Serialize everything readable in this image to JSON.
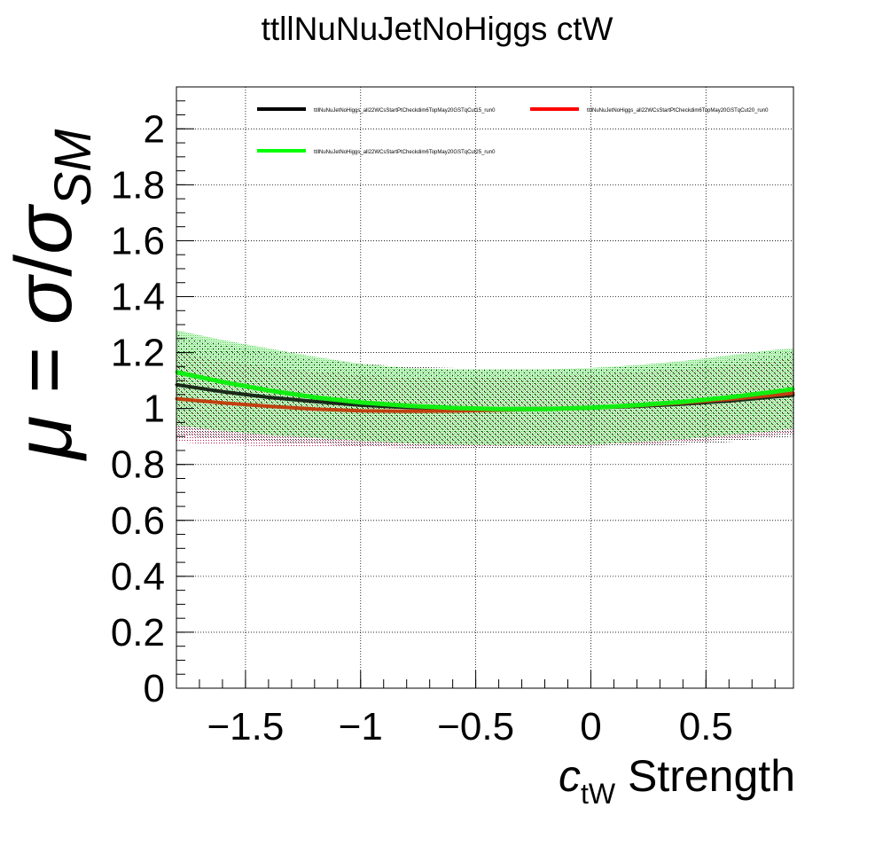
{
  "chart_data": {
    "type": "line",
    "title": "ttllNuNuJetNoHiggs ctW",
    "xlabel": {
      "main": "c",
      "sub": "tW",
      "suffix": " Strength"
    },
    "ylabel": {
      "mu": "μ",
      "eq": " = ",
      "sigma": "σ",
      "slash": "/",
      "sub": "SM"
    },
    "xlim": [
      -1.8,
      0.88
    ],
    "ylim": [
      0,
      2.15
    ],
    "x_ticks": [
      -1.5,
      -1,
      -0.5,
      0,
      0.5
    ],
    "x_tick_labels": [
      "−1.5",
      "−1",
      "−0.5",
      "0",
      "0.5"
    ],
    "y_ticks": [
      0,
      0.2,
      0.4,
      0.6,
      0.8,
      1,
      1.2,
      1.4,
      1.6,
      1.8,
      2
    ],
    "y_tick_labels": [
      "0",
      "0.2",
      "0.4",
      "0.6",
      "0.8",
      "1",
      "1.2",
      "1.4",
      "1.6",
      "1.8",
      "2"
    ],
    "grid": true,
    "legend_position": "top",
    "x": [
      -1.8,
      -1.6,
      -1.4,
      -1.2,
      -1.0,
      -0.8,
      -0.6,
      -0.4,
      -0.2,
      0.0,
      0.2,
      0.4,
      0.6,
      0.8,
      0.88
    ],
    "series": [
      {
        "name": "ttllNuNuJetNoHiggs_all22WCsStartPtCheckdim6TopMay20GSTqCut15_run0",
        "color": "#000000",
        "values": [
          1.085,
          1.06,
          1.04,
          1.025,
          1.012,
          1.004,
          1.0,
          0.999,
          1.0,
          1.002,
          1.008,
          1.016,
          1.027,
          1.042,
          1.048
        ],
        "band_upper": [
          1.265,
          1.23,
          1.2,
          1.175,
          1.16,
          1.15,
          1.145,
          1.14,
          1.14,
          1.142,
          1.15,
          1.16,
          1.175,
          1.19,
          1.2
        ],
        "band_lower": [
          0.905,
          0.89,
          0.88,
          0.875,
          0.865,
          0.86,
          0.855,
          0.855,
          0.855,
          0.86,
          0.865,
          0.87,
          0.88,
          0.895,
          0.9
        ]
      },
      {
        "name": "ttllNuNuJetNoHiggs_all22WCsStartPtCheckdim6TopMay20GSTqCut20_run0",
        "color": "#ff0000",
        "values": [
          1.035,
          1.02,
          1.008,
          0.998,
          0.992,
          0.99,
          0.991,
          0.994,
          0.998,
          1.002,
          1.01,
          1.02,
          1.033,
          1.048,
          1.055
        ],
        "band_upper": [
          1.2,
          1.17,
          1.15,
          1.13,
          1.12,
          1.11,
          1.11,
          1.11,
          1.115,
          1.12,
          1.13,
          1.14,
          1.155,
          1.17,
          1.18
        ],
        "band_lower": [
          0.88,
          0.87,
          0.865,
          0.86,
          0.86,
          0.858,
          0.858,
          0.86,
          0.862,
          0.866,
          0.872,
          0.88,
          0.89,
          0.905,
          0.91
        ]
      },
      {
        "name": "ttllNuNuJetNoHiggs_all22WCsStartPtCheckdim6TopMay20GSTqCut25_run0",
        "color": "#00ff00",
        "values": [
          1.13,
          1.095,
          1.065,
          1.04,
          1.022,
          1.01,
          1.002,
          0.998,
          0.998,
          1.003,
          1.012,
          1.024,
          1.04,
          1.06,
          1.07
        ],
        "band_upper": [
          1.28,
          1.245,
          1.215,
          1.185,
          1.16,
          1.145,
          1.14,
          1.14,
          1.14,
          1.145,
          1.155,
          1.17,
          1.19,
          1.21,
          1.215
        ],
        "band_lower": [
          0.94,
          0.92,
          0.905,
          0.895,
          0.885,
          0.875,
          0.87,
          0.868,
          0.868,
          0.87,
          0.88,
          0.89,
          0.905,
          0.92,
          0.93
        ]
      }
    ]
  }
}
